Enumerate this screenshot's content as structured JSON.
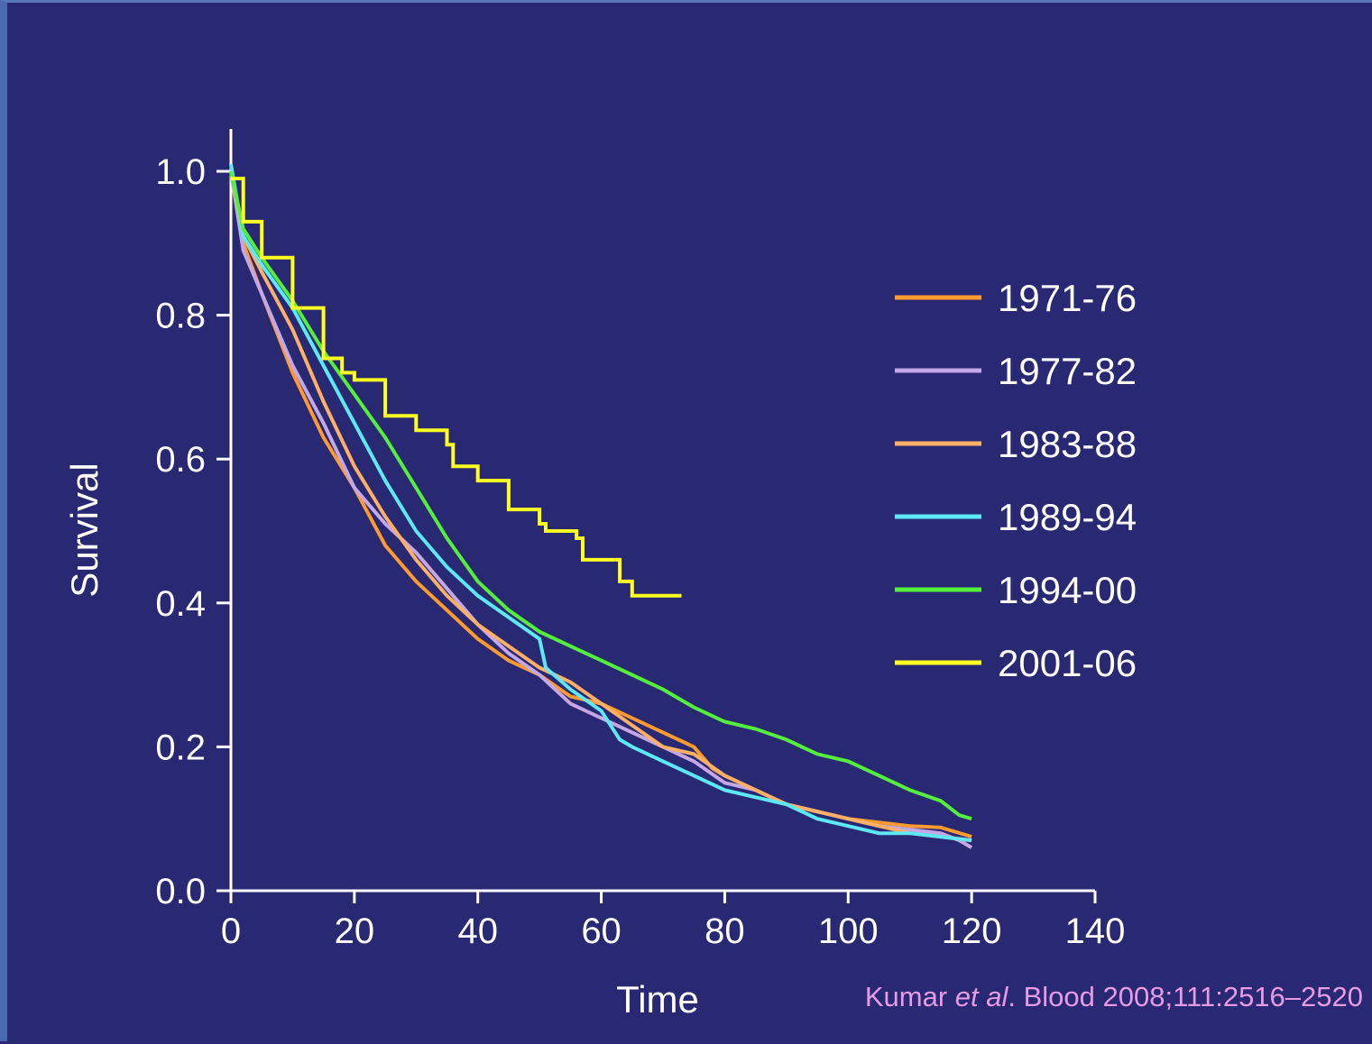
{
  "citation": {
    "authors": "Kumar ",
    "etal": "et al",
    "rest": ". Blood 2008;111:2516–2520"
  },
  "chart_data": {
    "type": "line",
    "title": "",
    "xlabel": "Time",
    "ylabel": "Survival",
    "xlim": [
      0,
      140
    ],
    "ylim": [
      0,
      1.0
    ],
    "xticks": [
      "0",
      "20",
      "40",
      "60",
      "80",
      "100",
      "120",
      "140"
    ],
    "yticks": [
      "0.0",
      "0.2",
      "0.4",
      "0.6",
      "0.8",
      "1.0"
    ],
    "grid": false,
    "legend_position": "right",
    "series": [
      {
        "name": "1971-76",
        "color": "#ff9a2e",
        "x": [
          0,
          2,
          5,
          10,
          15,
          20,
          25,
          30,
          35,
          40,
          45,
          50,
          55,
          60,
          65,
          70,
          75,
          78,
          80,
          85,
          90,
          95,
          100,
          105,
          110,
          115,
          120
        ],
        "y": [
          1.0,
          0.9,
          0.83,
          0.72,
          0.63,
          0.56,
          0.48,
          0.43,
          0.39,
          0.35,
          0.32,
          0.3,
          0.27,
          0.26,
          0.24,
          0.22,
          0.2,
          0.17,
          0.16,
          0.14,
          0.12,
          0.11,
          0.1,
          0.095,
          0.09,
          0.088,
          0.075
        ]
      },
      {
        "name": "1977-82",
        "color": "#c4a7e6",
        "x": [
          0,
          2,
          5,
          10,
          15,
          20,
          25,
          30,
          35,
          40,
          45,
          50,
          55,
          60,
          65,
          70,
          75,
          80,
          85,
          90,
          95,
          100,
          105,
          110,
          115,
          118,
          120
        ],
        "y": [
          1.0,
          0.89,
          0.83,
          0.73,
          0.65,
          0.56,
          0.51,
          0.47,
          0.42,
          0.37,
          0.33,
          0.3,
          0.26,
          0.24,
          0.22,
          0.2,
          0.18,
          0.15,
          0.14,
          0.12,
          0.11,
          0.1,
          0.09,
          0.085,
          0.08,
          0.07,
          0.06
        ]
      },
      {
        "name": "1983-88",
        "color": "#ffb066",
        "x": [
          0,
          2,
          5,
          10,
          15,
          20,
          25,
          30,
          35,
          40,
          45,
          50,
          55,
          60,
          65,
          70,
          75,
          80,
          85,
          90,
          95,
          100,
          105,
          110,
          115,
          120
        ],
        "y": [
          1.0,
          0.91,
          0.86,
          0.78,
          0.68,
          0.59,
          0.52,
          0.46,
          0.41,
          0.37,
          0.34,
          0.31,
          0.29,
          0.26,
          0.23,
          0.2,
          0.19,
          0.16,
          0.14,
          0.12,
          0.11,
          0.1,
          0.09,
          0.08,
          0.075,
          0.07
        ]
      },
      {
        "name": "1989-94",
        "color": "#5ee8f5",
        "x": [
          0,
          2,
          5,
          10,
          15,
          20,
          25,
          30,
          35,
          40,
          45,
          50,
          51,
          55,
          60,
          63,
          65,
          70,
          75,
          80,
          85,
          90,
          95,
          100,
          105,
          110,
          115,
          120
        ],
        "y": [
          1.01,
          0.91,
          0.87,
          0.81,
          0.73,
          0.65,
          0.57,
          0.5,
          0.45,
          0.41,
          0.38,
          0.35,
          0.31,
          0.28,
          0.25,
          0.21,
          0.2,
          0.18,
          0.16,
          0.14,
          0.13,
          0.12,
          0.1,
          0.09,
          0.08,
          0.08,
          0.075,
          0.07
        ]
      },
      {
        "name": "1994-00",
        "color": "#55ee3c",
        "x": [
          0,
          2,
          5,
          10,
          15,
          20,
          25,
          30,
          35,
          40,
          45,
          50,
          55,
          60,
          65,
          70,
          75,
          80,
          85,
          90,
          95,
          100,
          105,
          110,
          115,
          118,
          120
        ],
        "y": [
          1.0,
          0.92,
          0.88,
          0.82,
          0.75,
          0.69,
          0.63,
          0.56,
          0.49,
          0.43,
          0.39,
          0.36,
          0.34,
          0.32,
          0.3,
          0.28,
          0.255,
          0.235,
          0.225,
          0.21,
          0.19,
          0.18,
          0.16,
          0.14,
          0.125,
          0.105,
          0.1
        ]
      },
      {
        "name": "2001-06",
        "color": "#ffff22",
        "x": [
          0,
          2,
          5,
          10,
          15,
          18,
          20,
          22,
          25,
          30,
          35,
          36,
          40,
          45,
          50,
          51,
          55,
          56,
          57,
          62,
          63,
          64,
          65,
          73
        ],
        "y": [
          0.99,
          0.93,
          0.88,
          0.81,
          0.74,
          0.72,
          0.71,
          0.71,
          0.66,
          0.64,
          0.62,
          0.59,
          0.57,
          0.53,
          0.51,
          0.5,
          0.5,
          0.49,
          0.46,
          0.46,
          0.43,
          0.43,
          0.41,
          0.41
        ]
      }
    ]
  }
}
